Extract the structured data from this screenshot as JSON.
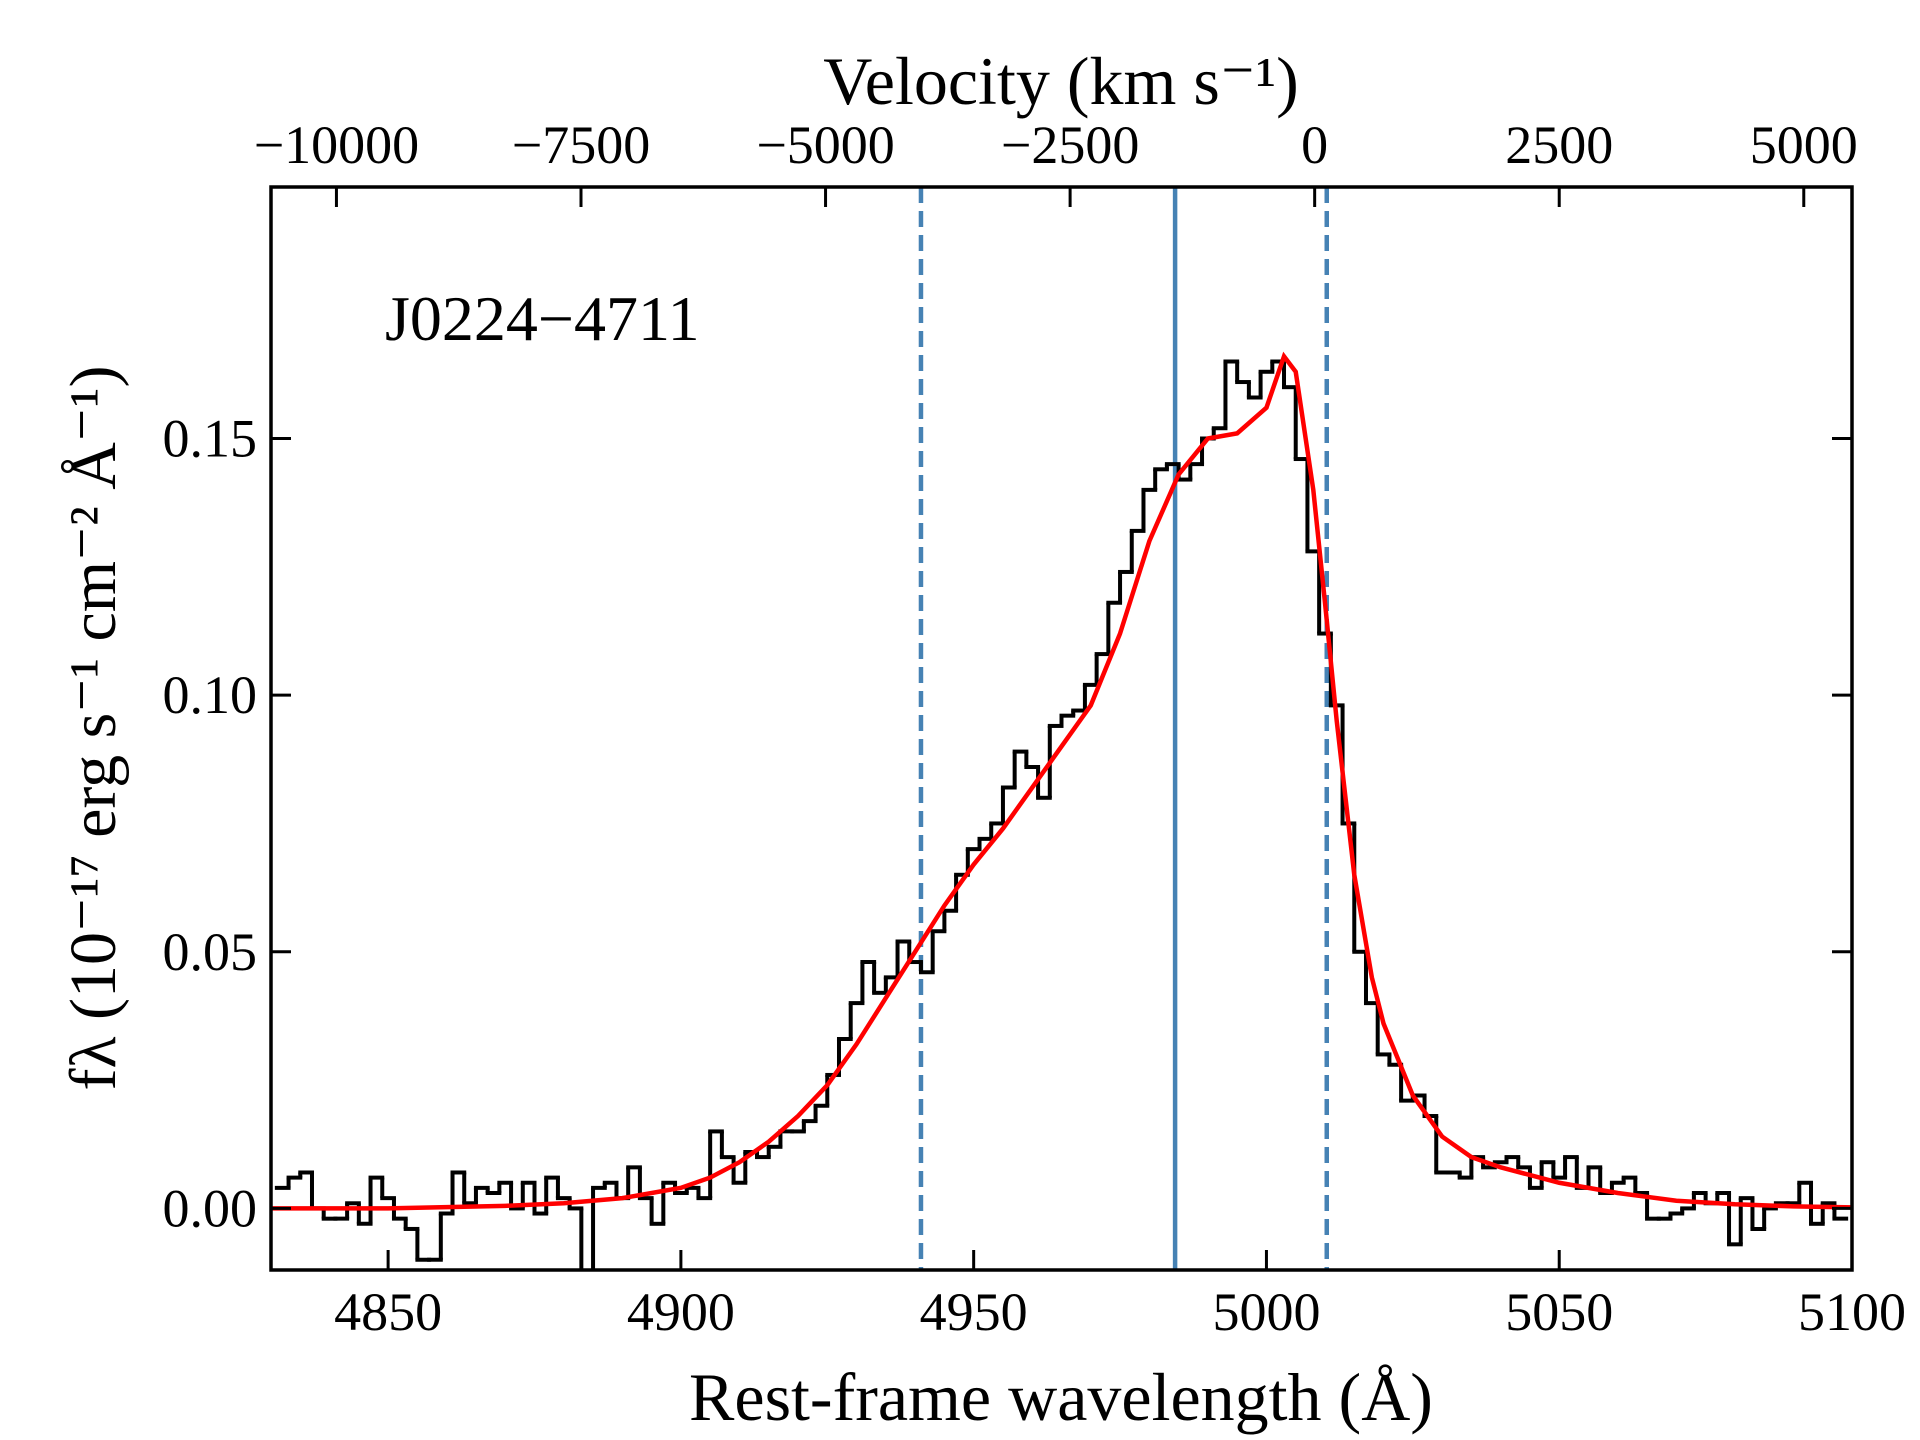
{
  "chart_data": {
    "type": "line",
    "xlabel": "Rest-frame wavelength (Å)",
    "x2label": "Velocity (km s⁻¹)",
    "ylabel": "fλ (10⁻¹⁷ erg s⁻¹ cm⁻² Å⁻¹)",
    "annotation": "J0224−4711",
    "xlim": [
      4830,
      5100
    ],
    "xticks": [
      4850,
      4900,
      4950,
      5000,
      5050,
      5100
    ],
    "x2lim": [
      -10669,
      5493
    ],
    "x2ticks": [
      {
        "value": -10000,
        "label": "−10000"
      },
      {
        "value": -7500,
        "label": "−7500"
      },
      {
        "value": -5000,
        "label": "−5000"
      },
      {
        "value": -2500,
        "label": "−2500"
      },
      0,
      2500,
      5000
    ],
    "ylim": [
      -0.012,
      0.199
    ],
    "yticks": [
      {
        "value": 0,
        "label": "0.00"
      },
      {
        "value": 0.05,
        "label": "0.05"
      },
      {
        "value": 0.1,
        "label": "0.10"
      },
      {
        "value": 0.15,
        "label": "0.15"
      }
    ],
    "vlines": [
      {
        "x": 4941,
        "color": "#4682b4",
        "style": "dashed"
      },
      {
        "x": 4984.4,
        "color": "#4682b4",
        "style": "solid"
      },
      {
        "x": 5010.3,
        "color": "#4682b4",
        "style": "dashed"
      }
    ],
    "series": [
      {
        "color": "#000000",
        "drawstyle": "steps-mid",
        "x": [
          4832,
          4834,
          4836,
          4838,
          4840,
          4842,
          4844,
          4846,
          4848,
          4850,
          4852,
          4854,
          4856,
          4858,
          4860,
          4862,
          4864,
          4866,
          4868,
          4870,
          4872,
          4874,
          4876,
          4878,
          4880,
          4882,
          4884,
          4886,
          4888,
          4890,
          4892,
          4894,
          4896,
          4898,
          4900,
          4902,
          4904,
          4906,
          4908,
          4910,
          4912,
          4914,
          4916,
          4918,
          4920,
          4922,
          4924,
          4926,
          4928,
          4930,
          4932,
          4934,
          4936,
          4938,
          4940,
          4942,
          4944,
          4946,
          4948,
          4950,
          4952,
          4954,
          4956,
          4958,
          4960,
          4962,
          4964,
          4966,
          4968,
          4970,
          4972,
          4974,
          4976,
          4978,
          4980,
          4982,
          4984,
          4986,
          4988,
          4990,
          4992,
          4994,
          4996,
          4998,
          5000,
          5002,
          5004,
          5006,
          5008,
          5010,
          5012,
          5014,
          5016,
          5018,
          5020,
          5022,
          5024,
          5026,
          5028,
          5030,
          5032,
          5034,
          5036,
          5038,
          5040,
          5042,
          5044,
          5046,
          5048,
          5050,
          5052,
          5054,
          5056,
          5058,
          5060,
          5062,
          5064,
          5066,
          5068,
          5070,
          5072,
          5074,
          5076,
          5078,
          5080,
          5082,
          5084,
          5086,
          5088,
          5090,
          5092,
          5094,
          5096,
          5098
        ],
        "values": [
          0.004,
          0.006,
          0.007,
          0.0,
          -0.002,
          -0.002,
          0.001,
          -0.003,
          0.006,
          0.002,
          -0.002,
          -0.004,
          -0.01,
          -0.01,
          -0.001,
          0.007,
          0.001,
          0.004,
          0.003,
          0.005,
          0.0,
          0.005,
          -0.001,
          0.006,
          0.002,
          0.0,
          -0.013,
          0.004,
          0.005,
          0.002,
          0.008,
          0.002,
          -0.003,
          0.005,
          0.003,
          0.004,
          0.002,
          0.015,
          0.01,
          0.005,
          0.011,
          0.01,
          0.012,
          0.015,
          0.015,
          0.017,
          0.02,
          0.026,
          0.033,
          0.04,
          0.048,
          0.042,
          0.045,
          0.052,
          0.048,
          0.046,
          0.054,
          0.058,
          0.065,
          0.07,
          0.072,
          0.075,
          0.082,
          0.089,
          0.086,
          0.08,
          0.094,
          0.096,
          0.097,
          0.102,
          0.108,
          0.118,
          0.124,
          0.132,
          0.14,
          0.144,
          0.145,
          0.142,
          0.145,
          0.15,
          0.152,
          0.165,
          0.161,
          0.158,
          0.163,
          0.165,
          0.16,
          0.146,
          0.128,
          0.112,
          0.098,
          0.075,
          0.05,
          0.04,
          0.03,
          0.028,
          0.021,
          0.022,
          0.018,
          0.007,
          0.007,
          0.006,
          0.01,
          0.008,
          0.009,
          0.01,
          0.008,
          0.004,
          0.009,
          0.006,
          0.01,
          0.004,
          0.008,
          0.003,
          0.005,
          0.006,
          0.003,
          -0.002,
          -0.002,
          -0.001,
          0.0,
          0.003,
          0.001,
          0.003,
          -0.007,
          0.002,
          -0.004,
          0.0,
          0.001,
          0.001,
          0.005,
          -0.003,
          0.001,
          -0.002
        ]
      },
      {
        "color": "#ff0000",
        "drawstyle": "line",
        "x": [
          4830,
          4850,
          4870,
          4880,
          4890,
          4900,
          4905,
          4910,
          4915,
          4920,
          4925,
          4930,
          4935,
          4940,
          4945,
          4950,
          4955,
          4960,
          4965,
          4970,
          4975,
          4980,
          4985,
          4990,
          4995,
          5000,
          5003,
          5005,
          5008,
          5010,
          5012,
          5015,
          5018,
          5020,
          5025,
          5030,
          5035,
          5040,
          5050,
          5060,
          5070,
          5080,
          5090,
          5100
        ],
        "values": [
          0,
          0,
          0.0005,
          0.001,
          0.002,
          0.004,
          0.006,
          0.009,
          0.013,
          0.018,
          0.024,
          0.032,
          0.041,
          0.05,
          0.059,
          0.067,
          0.074,
          0.082,
          0.09,
          0.098,
          0.112,
          0.13,
          0.143,
          0.15,
          0.151,
          0.156,
          0.166,
          0.163,
          0.14,
          0.118,
          0.095,
          0.065,
          0.045,
          0.036,
          0.022,
          0.014,
          0.01,
          0.008,
          0.005,
          0.003,
          0.0015,
          0.0008,
          0.0004,
          0.0002
        ]
      }
    ]
  }
}
